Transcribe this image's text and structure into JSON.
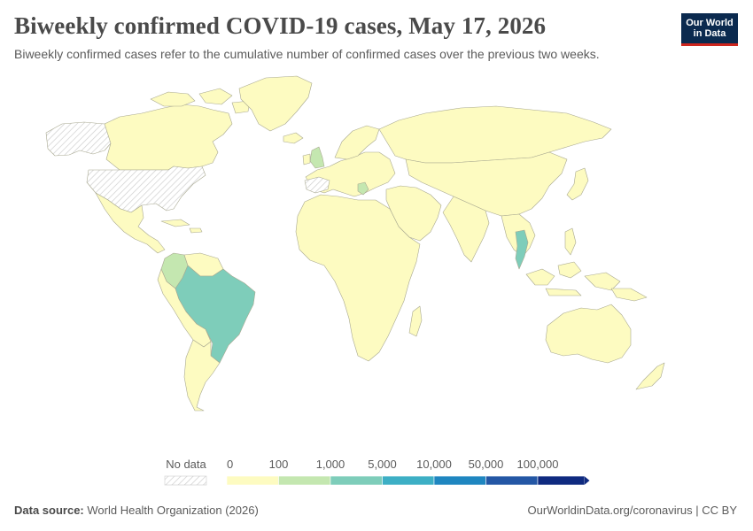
{
  "header": {
    "title": "Biweekly confirmed COVID-19 cases, May 17, 2026",
    "subtitle": "Biweekly confirmed cases refer to the cumulative number of confirmed cases over the previous two weeks."
  },
  "logo": {
    "line1": "Our World",
    "line2": "in Data"
  },
  "legend": {
    "no_data_label": "No data",
    "bins": [
      {
        "label": "0",
        "color": "#fdfbc1"
      },
      {
        "label": "100",
        "color": "#c4e7b0"
      },
      {
        "label": "1,000",
        "color": "#7ecdba"
      },
      {
        "label": "5,000",
        "color": "#3dafc5"
      },
      {
        "label": "10,000",
        "color": "#1f86c0"
      },
      {
        "label": "50,000",
        "color": "#2457a5"
      },
      {
        "label": "100,000",
        "color": "#0f2a80"
      }
    ]
  },
  "colors": {
    "no_data_hatch": "#d9d9d9",
    "border": "#9a9a8a",
    "title": "#4a4a4a"
  },
  "footer": {
    "source_label": "Data source:",
    "source_value": "World Health Organization (2026)",
    "link": "OurWorldinData.org/coronavirus | CC BY"
  }
}
